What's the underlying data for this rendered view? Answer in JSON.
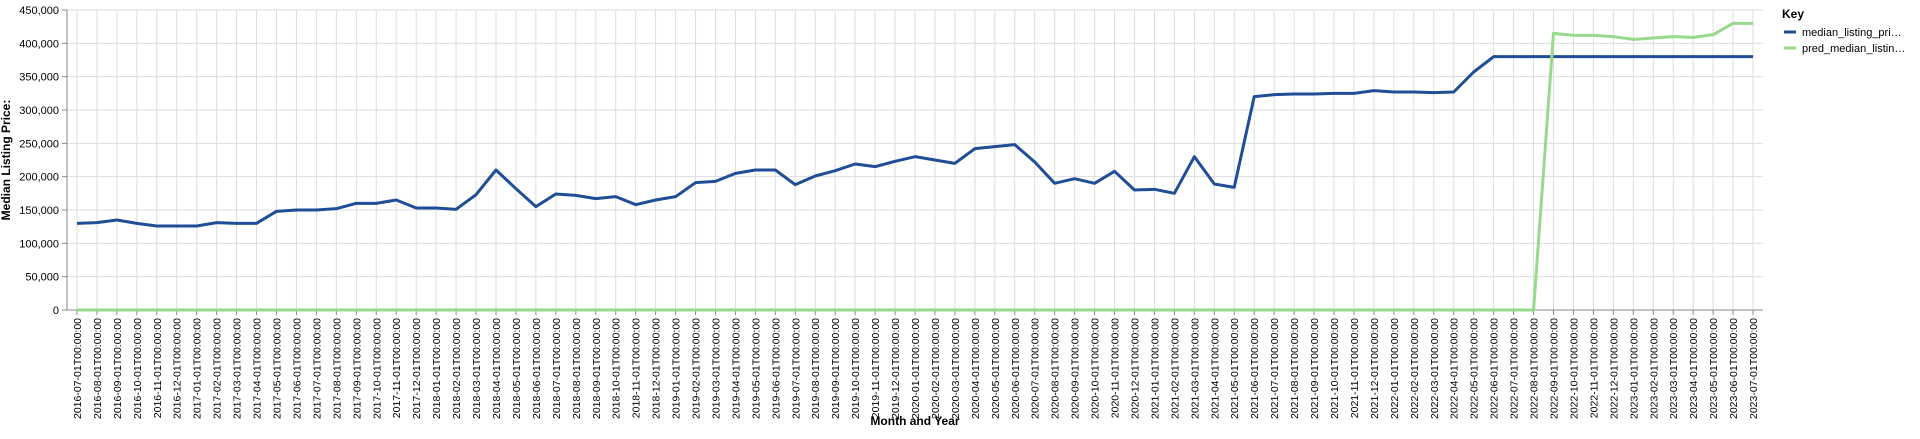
{
  "chart_data": {
    "type": "line",
    "x_label": "Month and Year",
    "y_label": "Median Listing Price:",
    "legend_title": "Key",
    "categories": [
      "2016-07-01T00:00:00",
      "2016-08-01T00:00:00",
      "2016-09-01T00:00:00",
      "2016-10-01T00:00:00",
      "2016-11-01T00:00:00",
      "2016-12-01T00:00:00",
      "2017-01-01T00:00:00",
      "2017-02-01T00:00:00",
      "2017-03-01T00:00:00",
      "2017-04-01T00:00:00",
      "2017-05-01T00:00:00",
      "2017-06-01T00:00:00",
      "2017-07-01T00:00:00",
      "2017-08-01T00:00:00",
      "2017-09-01T00:00:00",
      "2017-10-01T00:00:00",
      "2017-11-01T00:00:00",
      "2017-12-01T00:00:00",
      "2018-01-01T00:00:00",
      "2018-02-01T00:00:00",
      "2018-03-01T00:00:00",
      "2018-04-01T00:00:00",
      "2018-05-01T00:00:00",
      "2018-06-01T00:00:00",
      "2018-07-01T00:00:00",
      "2018-08-01T00:00:00",
      "2018-09-01T00:00:00",
      "2018-10-01T00:00:00",
      "2018-11-01T00:00:00",
      "2018-12-01T00:00:00",
      "2019-01-01T00:00:00",
      "2019-02-01T00:00:00",
      "2019-03-01T00:00:00",
      "2019-04-01T00:00:00",
      "2019-05-01T00:00:00",
      "2019-06-01T00:00:00",
      "2019-07-01T00:00:00",
      "2019-08-01T00:00:00",
      "2019-09-01T00:00:00",
      "2019-10-01T00:00:00",
      "2019-11-01T00:00:00",
      "2019-12-01T00:00:00",
      "2020-01-01T00:00:00",
      "2020-02-01T00:00:00",
      "2020-03-01T00:00:00",
      "2020-04-01T00:00:00",
      "2020-05-01T00:00:00",
      "2020-06-01T00:00:00",
      "2020-07-01T00:00:00",
      "2020-08-01T00:00:00",
      "2020-09-01T00:00:00",
      "2020-10-01T00:00:00",
      "2020-11-01T00:00:00",
      "2020-12-01T00:00:00",
      "2021-01-01T00:00:00",
      "2021-02-01T00:00:00",
      "2021-03-01T00:00:00",
      "2021-04-01T00:00:00",
      "2021-05-01T00:00:00",
      "2021-06-01T00:00:00",
      "2021-07-01T00:00:00",
      "2021-08-01T00:00:00",
      "2021-09-01T00:00:00",
      "2021-10-01T00:00:00",
      "2021-11-01T00:00:00",
      "2021-12-01T00:00:00",
      "2022-01-01T00:00:00",
      "2022-02-01T00:00:00",
      "2022-03-01T00:00:00",
      "2022-04-01T00:00:00",
      "2022-05-01T00:00:00",
      "2022-06-01T00:00:00",
      "2022-07-01T00:00:00",
      "2022-08-01T00:00:00",
      "2022-09-01T00:00:00",
      "2022-10-01T00:00:00",
      "2022-11-01T00:00:00",
      "2022-12-01T00:00:00",
      "2023-01-01T00:00:00",
      "2023-02-01T00:00:00",
      "2023-03-01T00:00:00",
      "2023-04-01T00:00:00",
      "2023-05-01T00:00:00",
      "2023-06-01T00:00:00",
      "2023-07-01T00:00:00"
    ],
    "series": [
      {
        "name": "median_listing_pri…",
        "color": "#1f4e96",
        "values": [
          130000,
          131000,
          135000,
          130000,
          126000,
          126000,
          126000,
          131000,
          130000,
          130000,
          148000,
          150000,
          150000,
          152000,
          160000,
          160000,
          165000,
          153000,
          153000,
          151000,
          173000,
          210000,
          182000,
          155000,
          174000,
          172000,
          167000,
          170000,
          158000,
          165000,
          170000,
          191000,
          193000,
          205000,
          210000,
          210000,
          188000,
          201000,
          209000,
          219000,
          215000,
          223000,
          230000,
          225000,
          220000,
          242000,
          245000,
          248000,
          222000,
          190000,
          197000,
          190000,
          208000,
          180000,
          181000,
          175000,
          230000,
          189000,
          184000,
          320000,
          323000,
          324000,
          324000,
          325000,
          325000,
          329000,
          327000,
          327000,
          326000,
          327000,
          357000,
          380000,
          380000,
          380000,
          380000,
          380000,
          380000,
          380000,
          380000,
          380000,
          380000,
          380000,
          380000,
          380000,
          380000
        ]
      },
      {
        "name": "pred_median_listin…",
        "color": "#98d98e",
        "values": [
          0,
          0,
          0,
          0,
          0,
          0,
          0,
          0,
          0,
          0,
          0,
          0,
          0,
          0,
          0,
          0,
          0,
          0,
          0,
          0,
          0,
          0,
          0,
          0,
          0,
          0,
          0,
          0,
          0,
          0,
          0,
          0,
          0,
          0,
          0,
          0,
          0,
          0,
          0,
          0,
          0,
          0,
          0,
          0,
          0,
          0,
          0,
          0,
          0,
          0,
          0,
          0,
          0,
          0,
          0,
          0,
          0,
          0,
          0,
          0,
          0,
          0,
          0,
          0,
          0,
          0,
          0,
          0,
          0,
          0,
          0,
          0,
          0,
          0,
          415000,
          412000,
          412000,
          410000,
          406000,
          408000,
          410000,
          409000,
          413000,
          430000,
          430000
        ]
      }
    ],
    "ylim": [
      0,
      450000
    ],
    "yticks": [
      0,
      {
        "value": 50000,
        "label": "50,000"
      },
      {
        "value": 100000,
        "label": "100,000"
      },
      {
        "value": 150000,
        "label": "150,000"
      },
      {
        "value": 200000,
        "label": "200,000"
      },
      {
        "value": 250000,
        "label": "250,000"
      },
      {
        "value": 300000,
        "label": "300,000"
      },
      {
        "value": 350000,
        "label": "350,000"
      },
      {
        "value": 400000,
        "label": "400,000"
      },
      {
        "value": 450000,
        "label": "450,000"
      }
    ],
    "grid": true,
    "legend": "right"
  }
}
